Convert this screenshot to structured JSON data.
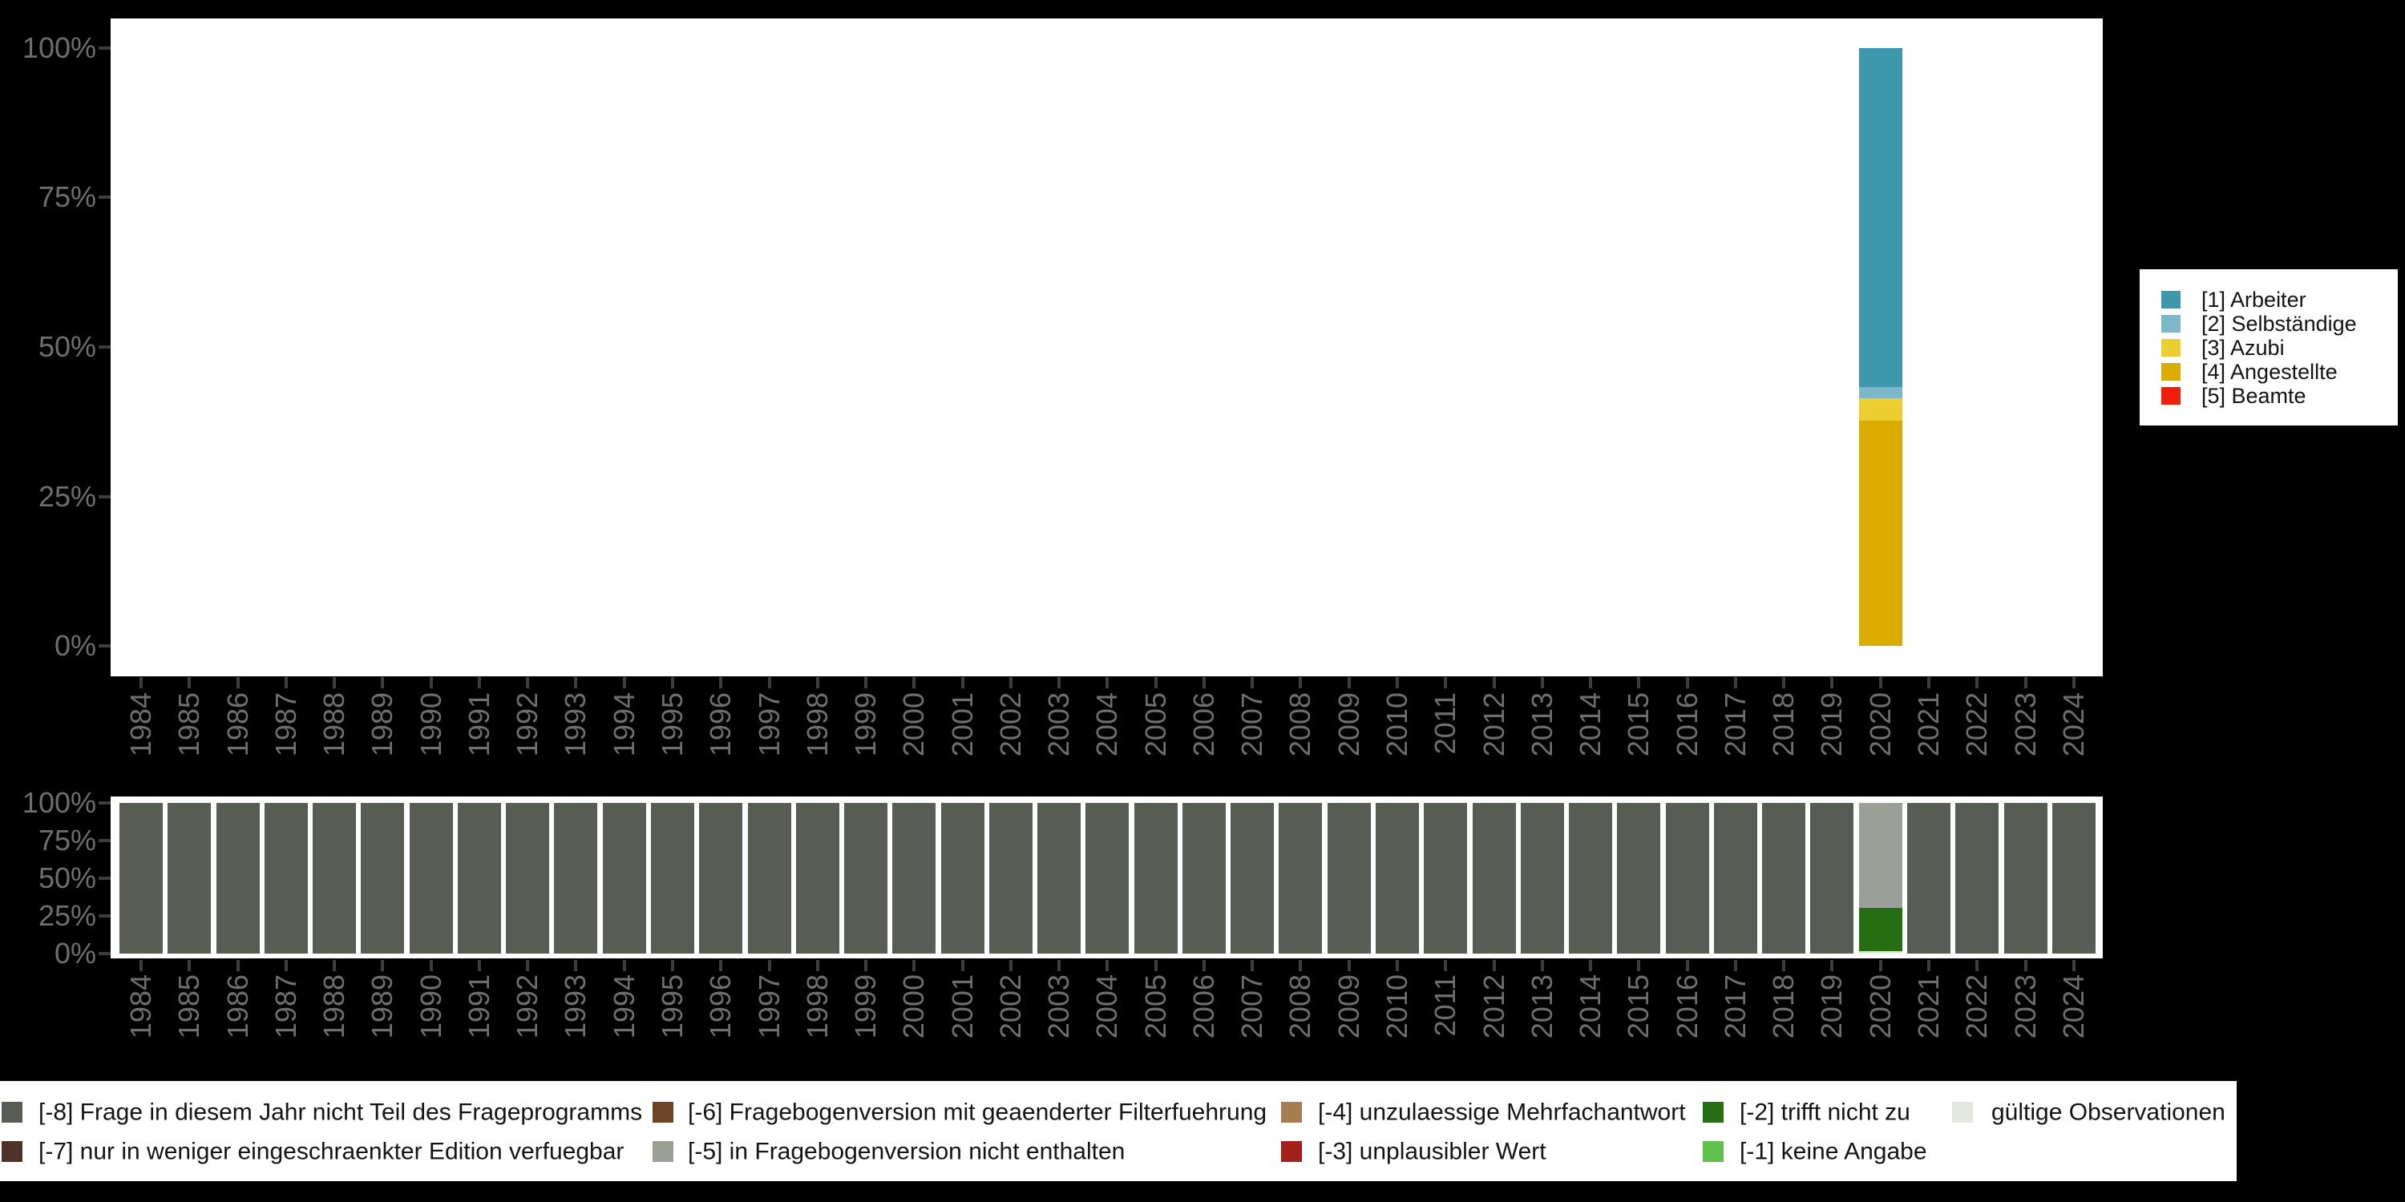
{
  "background_color": "#000000",
  "panel_color": "#ffffff",
  "axis_tick_color": "#3d3d3d",
  "axis_label_color": "#6e6e6e",
  "axes": {
    "y_tick_labels": [
      "100%",
      "75%",
      "50%",
      "25%",
      "0%"
    ],
    "years": [
      "1984",
      "1985",
      "1986",
      "1987",
      "1988",
      "1989",
      "1990",
      "1991",
      "1992",
      "1993",
      "1994",
      "1995",
      "1996",
      "1997",
      "1998",
      "1999",
      "2000",
      "2001",
      "2002",
      "2003",
      "2004",
      "2005",
      "2006",
      "2007",
      "2008",
      "2009",
      "2010",
      "2011",
      "2012",
      "2013",
      "2014",
      "2015",
      "2016",
      "2017",
      "2018",
      "2019",
      "2020",
      "2021",
      "2022",
      "2023",
      "2024"
    ]
  },
  "top_legend": {
    "items": [
      {
        "label": "[1] Arbeiter",
        "color": "#3D98AE"
      },
      {
        "label": "[2] Selbständige",
        "color": "#7CB8CA"
      },
      {
        "label": "[3] Azubi",
        "color": "#ECCF2E"
      },
      {
        "label": "[4] Angestellte",
        "color": "#DCAB00"
      },
      {
        "label": "[5] Beamte",
        "color": "#EF1D0A"
      }
    ]
  },
  "bottom_legend": {
    "items": [
      {
        "label": "[-8] Frage in diesem Jahr nicht Teil des Frageprogramms",
        "color": "#575D54",
        "row": 0,
        "col": 0
      },
      {
        "label": "[-7] nur in weniger eingeschraenkter Edition verfuegbar",
        "color": "#4F3328",
        "row": 1,
        "col": 0
      },
      {
        "label": "[-6] Fragebogenversion mit geaenderter Filterfuehrung",
        "color": "#6C4526",
        "row": 0,
        "col": 1
      },
      {
        "label": "[-5] in Fragebogenversion nicht enthalten",
        "color": "#9AA098",
        "row": 1,
        "col": 1
      },
      {
        "label": "[-4] unzulaessige Mehrfachantwort",
        "color": "#A67D51",
        "row": 0,
        "col": 2
      },
      {
        "label": "[-3] unplausibler Wert",
        "color": "#A4201A",
        "row": 1,
        "col": 2
      },
      {
        "label": "[-2] trifft nicht zu",
        "color": "#256E11",
        "row": 0,
        "col": 3
      },
      {
        "label": "[-1] keine Angabe",
        "color": "#5EC14C",
        "row": 1,
        "col": 3
      },
      {
        "label": "gültige Observationen",
        "color": "#E3E7E0",
        "row": 0,
        "col": 4
      }
    ]
  },
  "chart_data": [
    {
      "type": "bar",
      "stacked": true,
      "panel": "top",
      "title": "",
      "xlabel": "",
      "ylabel": "",
      "unit": "percent",
      "ylim": [
        0,
        100
      ],
      "yticks": [
        "0%",
        "25%",
        "50%",
        "75%",
        "100%"
      ],
      "categories": [
        "1984",
        "1985",
        "1986",
        "1987",
        "1988",
        "1989",
        "1990",
        "1991",
        "1992",
        "1993",
        "1994",
        "1995",
        "1996",
        "1997",
        "1998",
        "1999",
        "2000",
        "2001",
        "2002",
        "2003",
        "2004",
        "2005",
        "2006",
        "2007",
        "2008",
        "2009",
        "2010",
        "2011",
        "2012",
        "2013",
        "2014",
        "2015",
        "2016",
        "2017",
        "2018",
        "2019",
        "2020",
        "2021",
        "2022",
        "2023",
        "2024"
      ],
      "legend_position": "right",
      "series_order": [
        "[1] Arbeiter",
        "[2] Selbständige",
        "[3] Azubi",
        "[4] Angestellte",
        "[5] Beamte"
      ],
      "default_bar": [],
      "bars": {
        "2020": [
          [
            "[1] Arbeiter",
            56.7
          ],
          [
            "[2] Selbständige",
            1.9
          ],
          [
            "[3] Azubi",
            3.75
          ],
          [
            "[4] Angestellte",
            37.65
          ],
          [
            "[5] Beamte",
            0
          ]
        ]
      },
      "note": "only year 2020 has data; all other years show no bar"
    },
    {
      "type": "bar",
      "stacked": true,
      "panel": "bottom",
      "title": "",
      "xlabel": "",
      "ylabel": "",
      "unit": "percent",
      "ylim": [
        0,
        100
      ],
      "yticks": [
        "0%",
        "25%",
        "50%",
        "75%",
        "100%"
      ],
      "categories": [
        "1984",
        "1985",
        "1986",
        "1987",
        "1988",
        "1989",
        "1990",
        "1991",
        "1992",
        "1993",
        "1994",
        "1995",
        "1996",
        "1997",
        "1998",
        "1999",
        "2000",
        "2001",
        "2002",
        "2003",
        "2004",
        "2005",
        "2006",
        "2007",
        "2008",
        "2009",
        "2010",
        "2011",
        "2012",
        "2013",
        "2014",
        "2015",
        "2016",
        "2017",
        "2018",
        "2019",
        "2020",
        "2021",
        "2022",
        "2023",
        "2024"
      ],
      "legend_position": "bottom",
      "default_bar": [
        [
          "[-8] Frage in diesem Jahr nicht Teil des Frageprogramms",
          100
        ]
      ],
      "bars": {
        "2020": [
          [
            "[-5] in Fragebogenversion nicht enthalten",
            69.7
          ],
          [
            "[-2] trifft nicht zu",
            28.7
          ],
          [
            "gültige Observationen",
            1.6
          ]
        ]
      },
      "note": "all years are 100% [-8] except 2020"
    }
  ]
}
